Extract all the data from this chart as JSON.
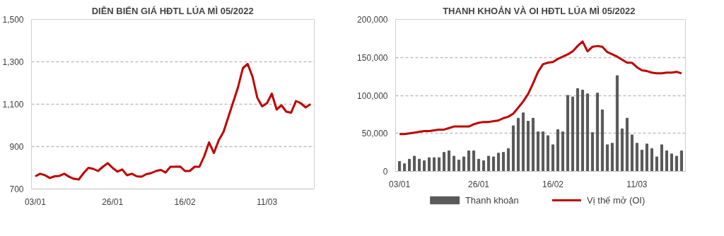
{
  "chart_data": [
    {
      "type": "line",
      "title": "DIỄN BIẾN GIÁ HĐTL LÚA MÌ 05/2022",
      "categories": [
        "03/01",
        null,
        null,
        null,
        null,
        null,
        null,
        null,
        null,
        null,
        null,
        null,
        null,
        null,
        null,
        null,
        "26/01",
        null,
        null,
        null,
        null,
        null,
        null,
        null,
        null,
        null,
        null,
        null,
        null,
        null,
        null,
        "16/02",
        null,
        null,
        null,
        null,
        null,
        null,
        null,
        null,
        null,
        null,
        null,
        null,
        null,
        null,
        null,
        null,
        "11/03",
        null,
        null,
        null,
        null,
        null,
        null,
        null,
        null,
        null
      ],
      "series": [
        {
          "color": "#c00000",
          "values": [
            760,
            772,
            765,
            752,
            760,
            762,
            772,
            758,
            748,
            745,
            775,
            800,
            795,
            785,
            805,
            822,
            800,
            782,
            792,
            765,
            772,
            760,
            758,
            770,
            775,
            785,
            790,
            778,
            805,
            805,
            806,
            785,
            785,
            805,
            805,
            855,
            920,
            870,
            930,
            970,
            1040,
            1110,
            1180,
            1270,
            1290,
            1230,
            1130,
            1090,
            1105,
            1150,
            1075,
            1095,
            1065,
            1060,
            1115,
            1105,
            1085,
            1100
          ]
        }
      ],
      "ylim": [
        700,
        1500
      ],
      "yticks": [
        {
          "value": 700,
          "label": "700"
        },
        {
          "value": 900,
          "label": "900"
        },
        {
          "value": 1100,
          "label": "1,100"
        },
        {
          "value": 1300,
          "label": "1,300"
        },
        {
          "value": 1500,
          "label": "1,500"
        }
      ],
      "grid": "y",
      "line_style": "solid",
      "marker": "none",
      "legend": false
    },
    {
      "type": "bar",
      "title": "THANH KHOẢN VÀ OI HĐTL LÚA MÌ  05/2022",
      "categories": [
        "03/01",
        null,
        null,
        null,
        null,
        null,
        null,
        null,
        null,
        null,
        null,
        null,
        null,
        null,
        null,
        null,
        "26/01",
        null,
        null,
        null,
        null,
        null,
        null,
        null,
        null,
        null,
        null,
        null,
        null,
        null,
        null,
        "16/02",
        null,
        null,
        null,
        null,
        null,
        null,
        null,
        null,
        null,
        null,
        null,
        null,
        null,
        null,
        null,
        null,
        "11/03",
        null,
        null,
        null,
        null,
        null,
        null,
        null,
        null,
        null
      ],
      "series": [
        {
          "name": "Thanh khoản",
          "type": "bar",
          "color": "#595959",
          "values": [
            13000,
            10000,
            16000,
            20000,
            16000,
            14000,
            18000,
            18000,
            18000,
            25000,
            27000,
            20000,
            15000,
            19000,
            27000,
            27000,
            16000,
            14000,
            20000,
            19000,
            24000,
            25000,
            30000,
            60000,
            70000,
            77000,
            66000,
            70000,
            52000,
            52000,
            47000,
            35000,
            55000,
            52000,
            100000,
            98000,
            109000,
            107000,
            102000,
            51000,
            103000,
            81000,
            35000,
            37000,
            126000,
            56000,
            70000,
            48000,
            37000,
            28000,
            36000,
            30000,
            19000,
            35000,
            27000,
            23000,
            20000,
            27000
          ]
        },
        {
          "name": "Vị thế mở (OI)",
          "type": "line",
          "color": "#c00000",
          "values": [
            49000,
            49000,
            50000,
            51000,
            52000,
            53000,
            53000,
            54000,
            55000,
            55000,
            57000,
            59000,
            59000,
            59000,
            59000,
            62000,
            64000,
            65000,
            65000,
            66000,
            67000,
            70000,
            72000,
            76000,
            84000,
            92000,
            102000,
            116000,
            131000,
            141000,
            143000,
            144000,
            148000,
            151000,
            154000,
            158000,
            165000,
            171000,
            158000,
            164000,
            165000,
            164000,
            157000,
            154000,
            151000,
            147000,
            143000,
            143000,
            137000,
            133000,
            132000,
            130000,
            129000,
            129000,
            130000,
            130000,
            131000,
            129000
          ]
        }
      ],
      "ylim": [
        0,
        200000
      ],
      "yticks": [
        {
          "value": 0,
          "label": "0"
        },
        {
          "value": 50000,
          "label": "50,000"
        },
        {
          "value": 100000,
          "label": "100,000"
        },
        {
          "value": 150000,
          "label": "150,000"
        },
        {
          "value": 200000,
          "label": "200,000"
        }
      ],
      "grid": "y",
      "line_style": "solid",
      "marker": "none",
      "legend": "bottom"
    }
  ]
}
